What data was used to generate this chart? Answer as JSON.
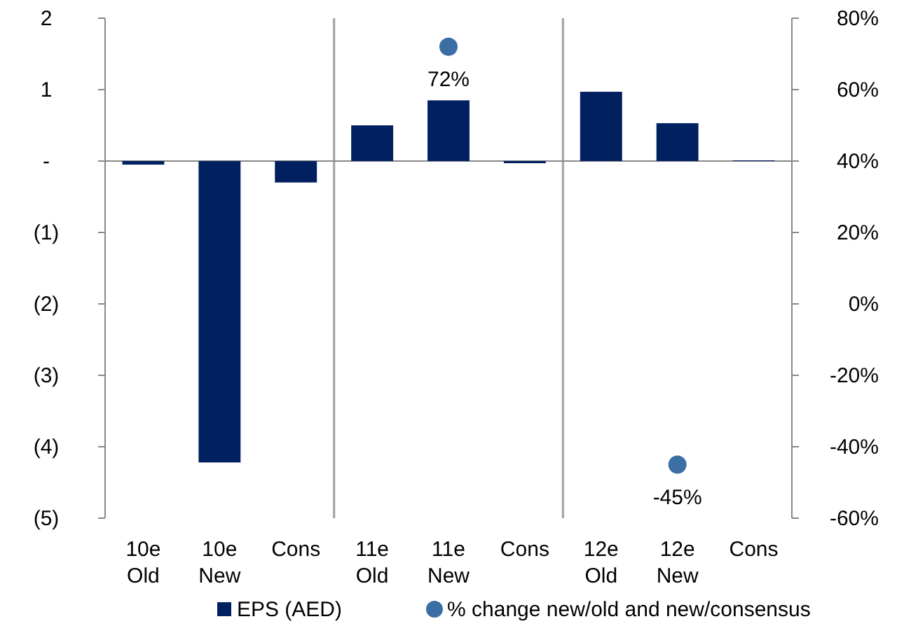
{
  "chart_data": {
    "type": "bar",
    "categories": [
      "10e Old",
      "10e New",
      "Cons",
      "11e Old",
      "11e New",
      "Cons",
      "12e Old",
      "12e New",
      "Cons"
    ],
    "ylim": [
      -5,
      2
    ],
    "yticks": [
      {
        "value": -5,
        "label": "(5)"
      },
      {
        "value": -4,
        "label": "(4)"
      },
      {
        "value": -3,
        "label": "(3)"
      },
      {
        "value": -2,
        "label": "(2)"
      },
      {
        "value": -1,
        "label": "(1)"
      },
      {
        "value": 0,
        "label": "-"
      },
      {
        "value": 1,
        "label": "1"
      },
      {
        "value": 2,
        "label": "2"
      }
    ],
    "y2lim": [
      -60,
      80
    ],
    "y2ticks": [
      {
        "value": -60,
        "label": "-60%"
      },
      {
        "value": -40,
        "label": "-40%"
      },
      {
        "value": -20,
        "label": "-20%"
      },
      {
        "value": 0,
        "label": "0%"
      },
      {
        "value": 20,
        "label": "20%"
      },
      {
        "value": 40,
        "label": "40%"
      },
      {
        "value": 60,
        "label": "60%"
      },
      {
        "value": 80,
        "label": "80%"
      }
    ],
    "series": [
      {
        "name": "EPS (AED)",
        "color": "#002060",
        "values": [
          -0.05,
          -4.22,
          -0.3,
          0.5,
          0.85,
          -0.03,
          0.97,
          0.53,
          0.01
        ]
      },
      {
        "name": "% change new/old and new/consensus",
        "type": "scatter",
        "axis": "y2",
        "color": "#3a6ea5",
        "x": [
          "11e New",
          "12e New"
        ],
        "values": [
          72,
          -45
        ],
        "value_labels": [
          "72%",
          "-45%"
        ]
      }
    ],
    "legend": "bottom",
    "marker": "circle",
    "grid": false
  }
}
